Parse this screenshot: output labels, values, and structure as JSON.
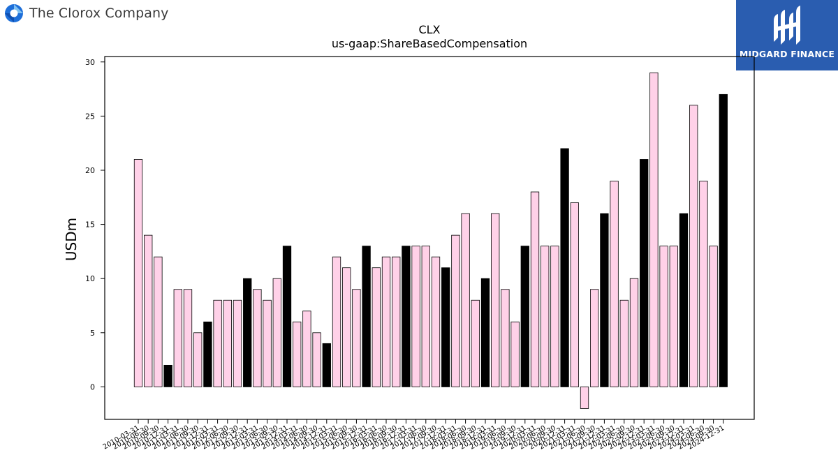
{
  "header": {
    "company_name": "The Clorox Company",
    "brand_name": "MIDGARD FINANCE"
  },
  "colors": {
    "bar_fill": "#ffd1e8",
    "bar_highlight": "#000000",
    "brand_bg": "#2a5db0",
    "logo_blue": "#1e6fd9",
    "logo_light": "#7fc1f2"
  },
  "icons": {
    "company_logo": "clorox-logo-icon",
    "brand_logo": "midgard-logo-icon"
  },
  "chart_data": {
    "type": "bar",
    "title": "CLX",
    "subtitle": "us-gaap:ShareBasedCompensation",
    "xlabel": "",
    "ylabel": "USDm",
    "ylim": [
      -3,
      30.5
    ],
    "yticks": [
      0,
      5,
      10,
      15,
      20,
      25,
      30
    ],
    "grid": false,
    "legend": "none",
    "categories": [
      "2010-03-31",
      "2010-06-30",
      "2010-09-30",
      "2010-12-31",
      "2011-03-31",
      "2011-06-30",
      "2011-09-30",
      "2011-12-31",
      "2012-03-31",
      "2012-06-30",
      "2012-09-30",
      "2012-12-31",
      "2013-03-31",
      "2013-06-30",
      "2013-09-30",
      "2013-12-31",
      "2014-03-31",
      "2014-06-30",
      "2014-09-30",
      "2014-12-31",
      "2015-03-31",
      "2015-06-30",
      "2015-09-30",
      "2015-12-31",
      "2016-03-31",
      "2016-06-30",
      "2016-09-30",
      "2016-12-31",
      "2017-03-31",
      "2017-06-30",
      "2017-09-30",
      "2017-12-31",
      "2018-03-31",
      "2018-06-30",
      "2018-09-30",
      "2018-12-31",
      "2019-03-31",
      "2019-06-30",
      "2019-09-30",
      "2019-12-31",
      "2020-03-31",
      "2020-06-30",
      "2020-09-30",
      "2020-12-31",
      "2021-03-31",
      "2021-06-30",
      "2021-09-30",
      "2021-12-31",
      "2022-03-31",
      "2022-06-30",
      "2022-09-30",
      "2022-12-31",
      "2023-03-31",
      "2023-06-30",
      "2023-09-30",
      "2023-12-31",
      "2024-03-31",
      "2024-06-30",
      "2024-09-30",
      "2024-12-31"
    ],
    "values": [
      21,
      14,
      12,
      2,
      9,
      9,
      5,
      6,
      8,
      8,
      8,
      10,
      9,
      8,
      10,
      13,
      6,
      7,
      5,
      4,
      12,
      11,
      9,
      13,
      11,
      12,
      12,
      13,
      13,
      13,
      12,
      11,
      14,
      16,
      8,
      10,
      16,
      9,
      6,
      13,
      18,
      13,
      13,
      22,
      17,
      -2,
      9,
      16,
      19,
      8,
      10,
      21,
      29,
      13,
      13,
      16,
      26,
      19,
      13,
      27
    ],
    "highlighted_categories": [
      "2010-12-31",
      "2011-12-31",
      "2012-12-31",
      "2013-12-31",
      "2014-12-31",
      "2015-12-31",
      "2016-12-31",
      "2017-12-31",
      "2018-12-31",
      "2019-12-31",
      "2020-12-31",
      "2021-12-31",
      "2022-12-31",
      "2023-12-31",
      "2024-12-31"
    ]
  }
}
